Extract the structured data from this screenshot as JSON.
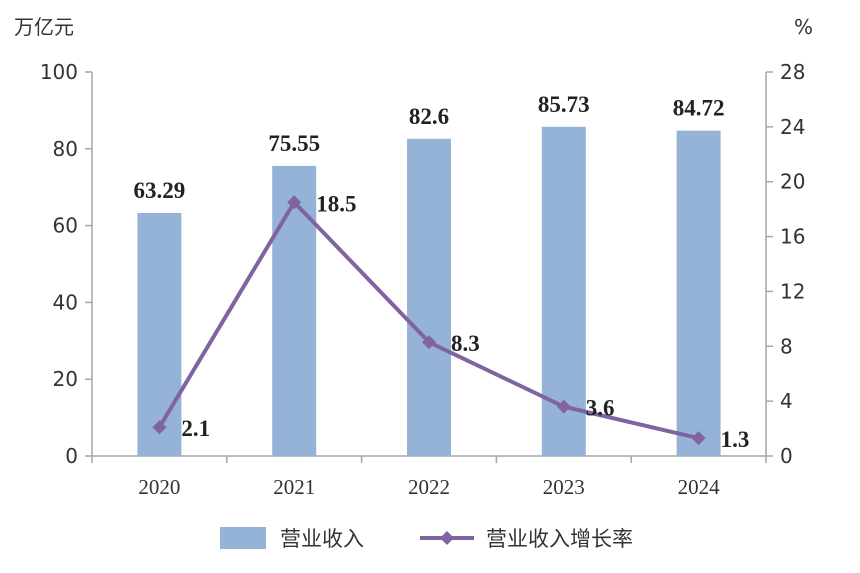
{
  "chart_data": {
    "type": "bar+line",
    "categories": [
      "2020",
      "2021",
      "2022",
      "2023",
      "2024"
    ],
    "series": [
      {
        "name": "营业收入",
        "type": "bar",
        "axis": "left",
        "values": [
          63.29,
          75.55,
          82.6,
          85.73,
          84.72
        ],
        "labels": [
          "63.29",
          "75.55",
          "82.6",
          "85.73",
          "84.72"
        ],
        "color": "#95b3d7"
      },
      {
        "name": "营业收入增长率",
        "type": "line",
        "axis": "right",
        "values": [
          2.1,
          18.5,
          8.3,
          3.6,
          1.3
        ],
        "labels": [
          "2.1",
          "18.5",
          "8.3",
          "3.6",
          "1.3"
        ],
        "color": "#8064a2",
        "marker": "diamond"
      }
    ],
    "y_left": {
      "unit": "万亿元",
      "min": 0,
      "max": 100,
      "ticks": [
        "0",
        "20",
        "40",
        "60",
        "80",
        "100"
      ]
    },
    "y_right": {
      "unit": "%",
      "min": 0,
      "max": 28,
      "ticks": [
        "0",
        "4",
        "8",
        "12",
        "16",
        "20",
        "24",
        "28"
      ]
    },
    "grid": false,
    "legend": "bottom"
  }
}
